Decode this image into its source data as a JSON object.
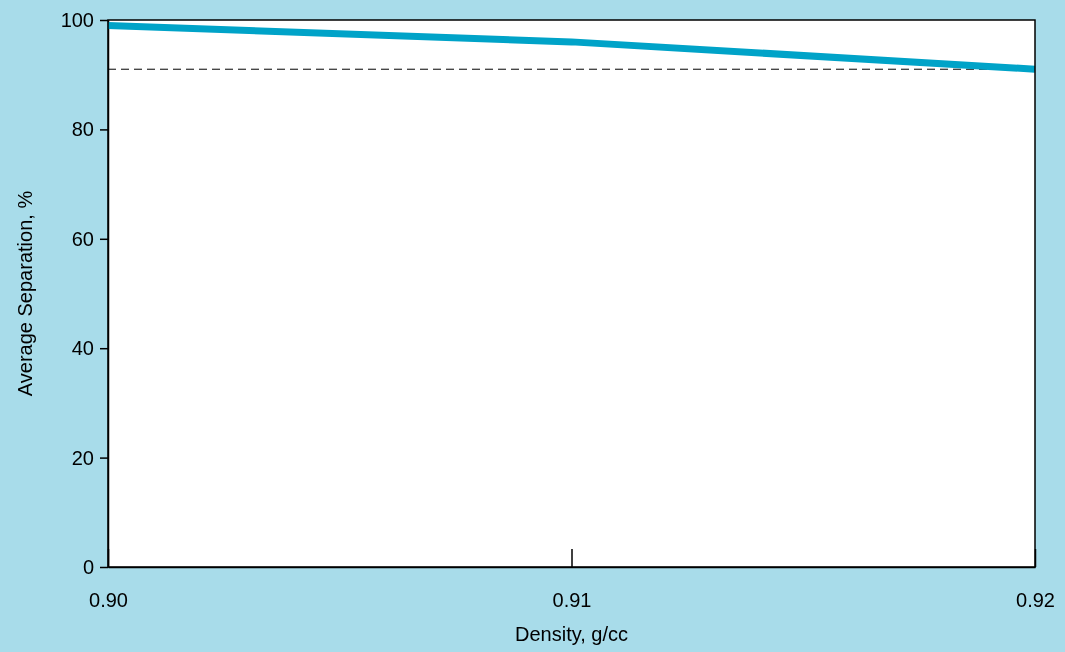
{
  "chart_data": {
    "type": "line",
    "xlabel": "Density, g/cc",
    "ylabel": "Average Separation, %",
    "x": [
      0.9,
      0.91,
      0.92
    ],
    "series": [
      {
        "color": "#00a3c8",
        "values": [
          99,
          96,
          91
        ]
      }
    ],
    "xlim": [
      0.9,
      0.92
    ],
    "xticks": [
      {
        "value": 0.9,
        "label": "0.90"
      },
      {
        "value": 0.91,
        "label": "0.91"
      },
      {
        "value": 0.92,
        "label": "0.92"
      }
    ],
    "ylim": [
      0,
      100
    ],
    "yticks": [
      0,
      20,
      40,
      60,
      80,
      100
    ],
    "ref_lines": [
      {
        "axis": "y",
        "value": 91,
        "color": "#000000",
        "line_style": "dashed"
      }
    ],
    "grid": false,
    "marker": "none",
    "line_style": "solid"
  }
}
